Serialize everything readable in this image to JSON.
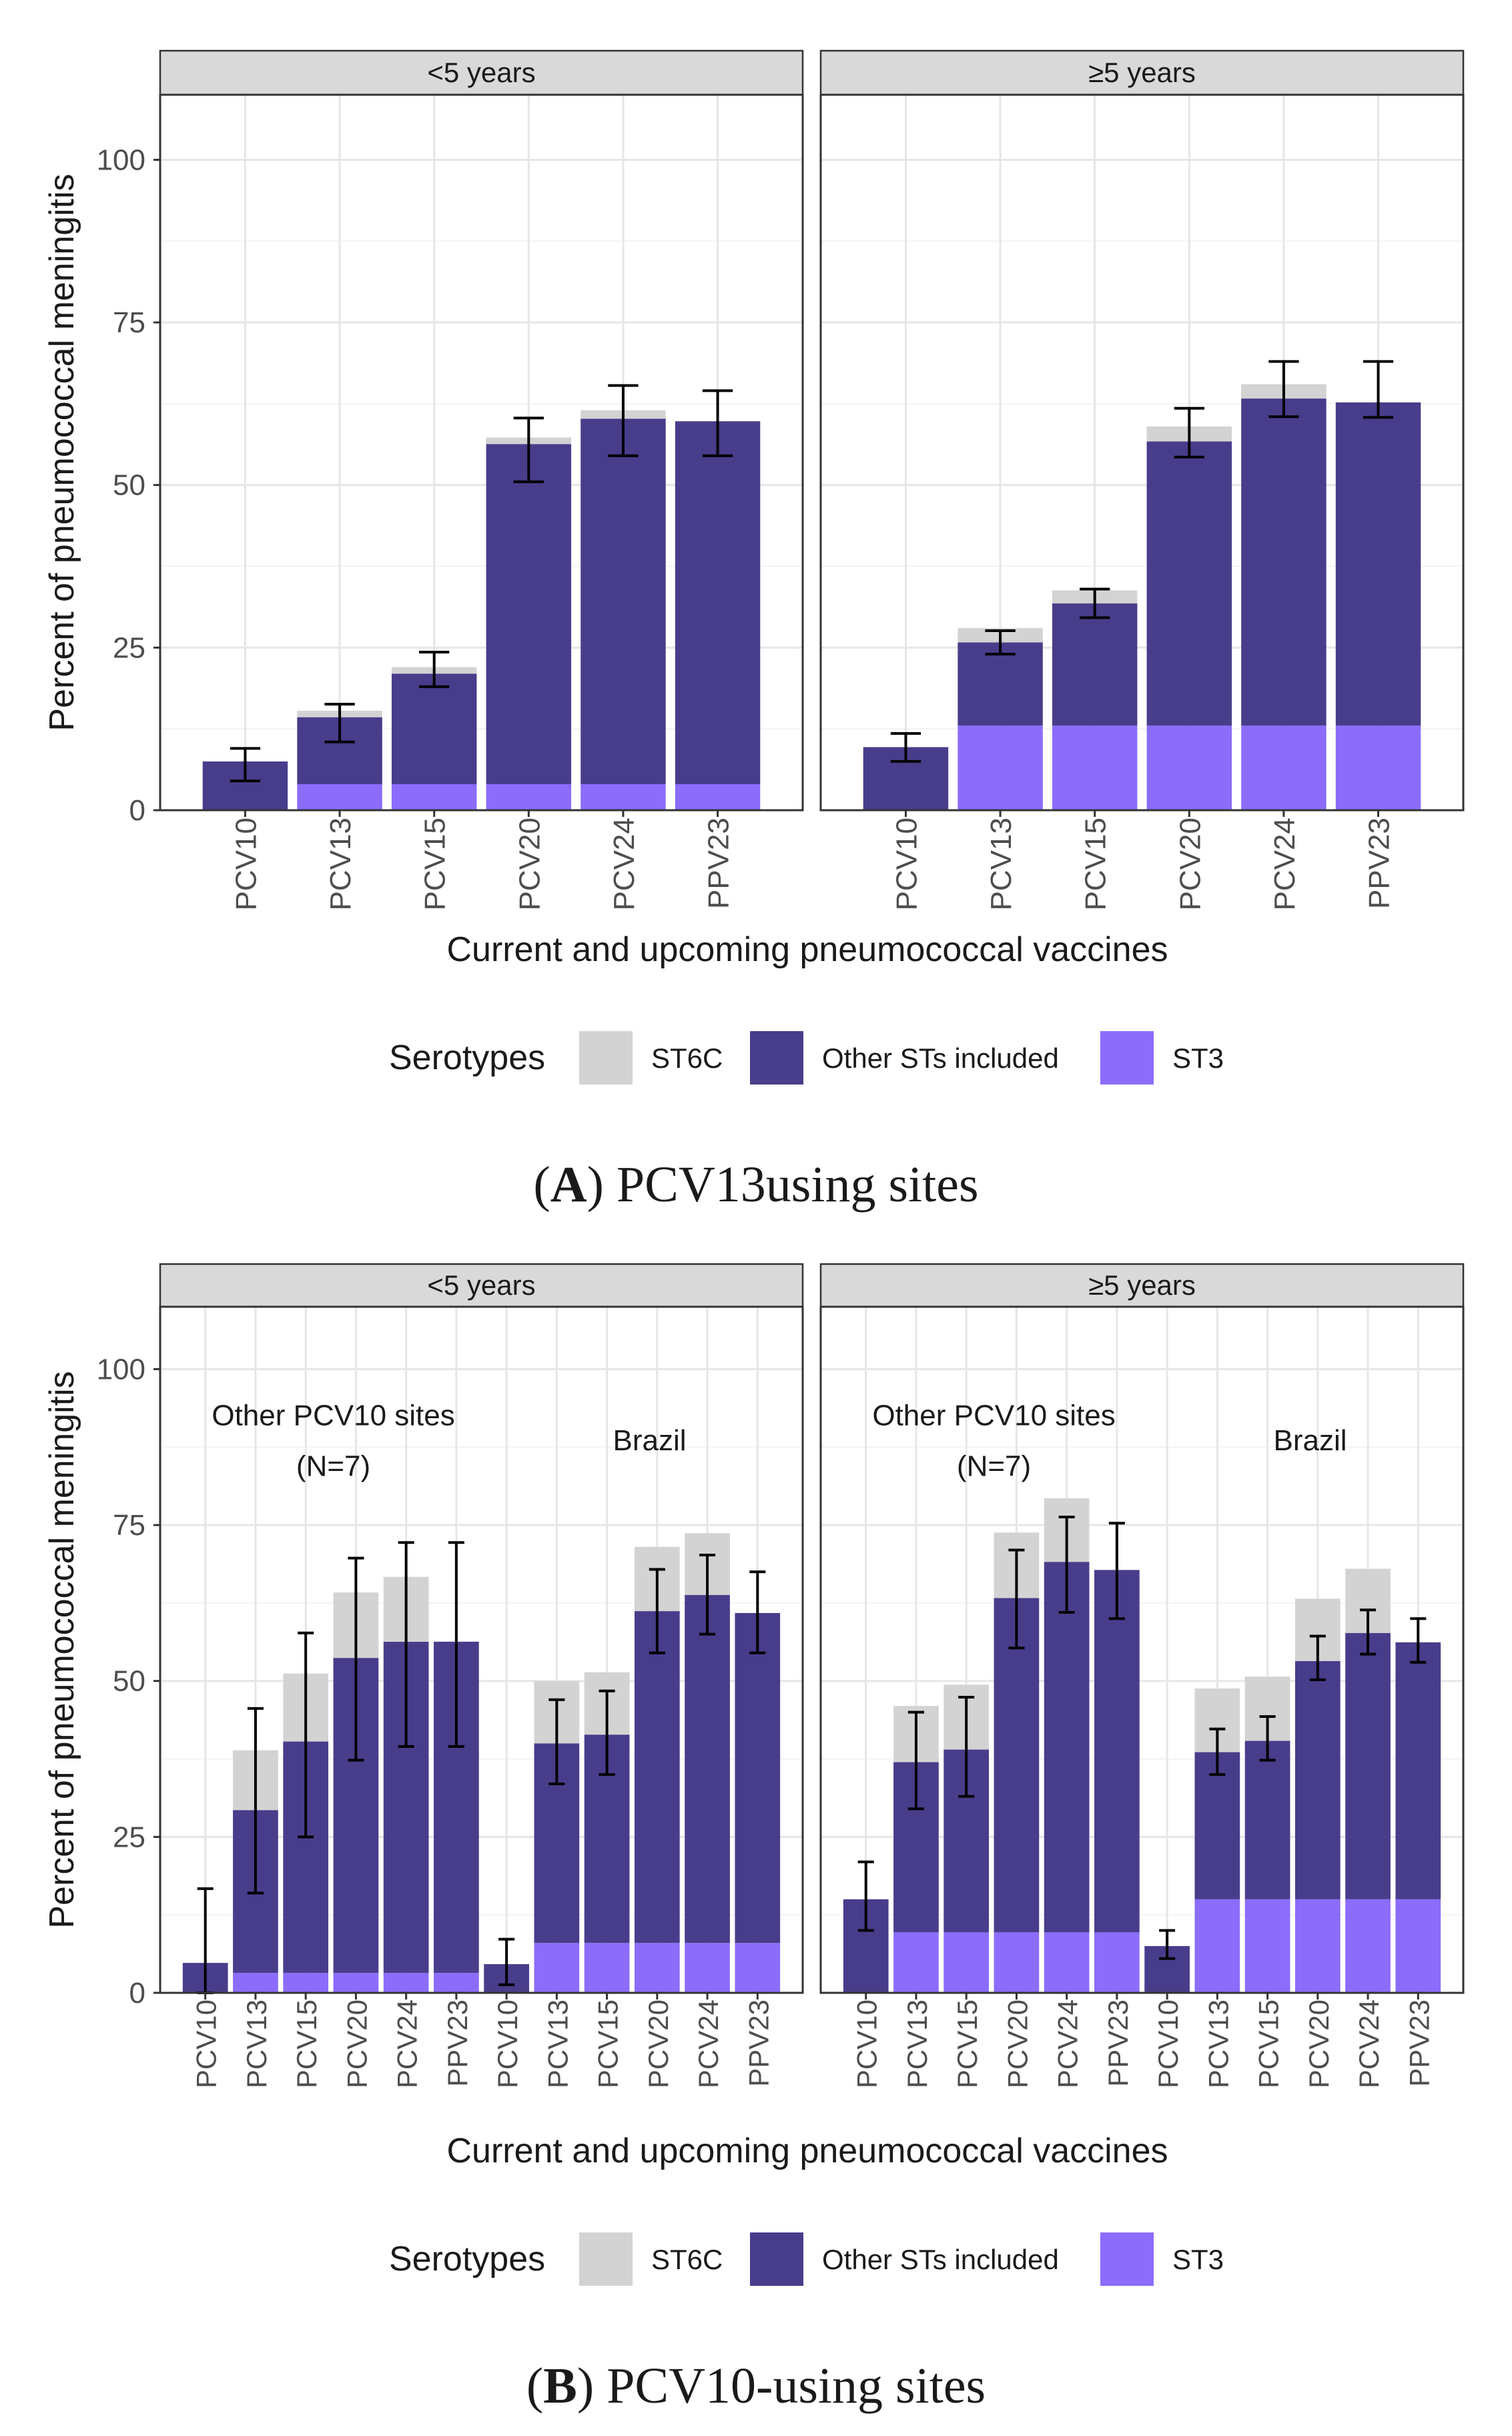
{
  "colors": {
    "ST6C": "#d3d3d3",
    "Other STs included": "#483d8b",
    "ST3": "#8c6cfb",
    "grid_major": "#e6e6e6",
    "grid_minor": "#f3f3f3",
    "strip_fill": "#d9d9d9"
  },
  "chart_data": [
    {
      "type": "bar",
      "stacked": true,
      "panel_group": "A",
      "caption_letter": "A",
      "caption_text": " PCV13using sites",
      "ylabel": "Percent of pneumococcal meningitis",
      "xlabel": "Current and upcoming pneumococcal vaccines",
      "ylim": [
        0,
        110
      ],
      "yticks": [
        0,
        25,
        50,
        75,
        100
      ],
      "legend_title": "Serotypes",
      "legend": [
        "ST6C",
        "Other STs included",
        "ST3"
      ],
      "facets": [
        {
          "title": "<5 years",
          "categories": [
            "PCV10",
            "PCV13",
            "PCV15",
            "PCV20",
            "PCV24",
            "PPV23"
          ],
          "series": [
            {
              "name": "ST3",
              "values": [
                0,
                4,
                4,
                4,
                4,
                4
              ]
            },
            {
              "name": "Other STs included",
              "values": [
                7.5,
                10.3,
                17,
                52.3,
                56.2,
                55.8
              ]
            },
            {
              "name": "ST6C",
              "values": [
                0,
                1,
                1,
                1,
                1.3,
                0
              ]
            }
          ],
          "error_bars": [
            {
              "center": 7,
              "low": 4.5,
              "high": 9.5
            },
            {
              "center": 14,
              "low": 10.5,
              "high": 16.3
            },
            {
              "center": 21,
              "low": 19,
              "high": 24.3
            },
            {
              "center": 56,
              "low": 50.5,
              "high": 60.3
            },
            {
              "center": 60,
              "low": 54.5,
              "high": 65.3
            },
            {
              "center": 60,
              "low": 54.5,
              "high": 64.5
            }
          ]
        },
        {
          "title": "≥5 years",
          "categories": [
            "PCV10",
            "PCV13",
            "PCV15",
            "PCV20",
            "PCV24",
            "PPV23"
          ],
          "series": [
            {
              "name": "ST3",
              "values": [
                0,
                13,
                13,
                13,
                13,
                13
              ]
            },
            {
              "name": "Other STs included",
              "values": [
                9.7,
                12.8,
                18.8,
                43.7,
                50.3,
                49.7
              ]
            },
            {
              "name": "ST6C",
              "values": [
                0,
                2.2,
                2,
                2.3,
                2.2,
                0
              ]
            }
          ],
          "error_bars": [
            {
              "center": 9.7,
              "low": 7.5,
              "high": 11.8
            },
            {
              "center": 25.8,
              "low": 24,
              "high": 27.6
            },
            {
              "center": 31.8,
              "low": 29.6,
              "high": 34
            },
            {
              "center": 57,
              "low": 54.3,
              "high": 61.8
            },
            {
              "center": 63.3,
              "low": 60.5,
              "high": 69
            },
            {
              "center": 62.7,
              "low": 60.4,
              "high": 69
            }
          ]
        }
      ]
    },
    {
      "type": "bar",
      "stacked": true,
      "panel_group": "B",
      "caption_letter": "B",
      "caption_text": " PCV10-using sites",
      "ylabel": "Percent of pneumococcal meningitis",
      "xlabel": "Current and upcoming pneumococcal vaccines",
      "ylim": [
        0,
        110
      ],
      "yticks": [
        0,
        25,
        50,
        75,
        100
      ],
      "legend_title": "Serotypes",
      "legend": [
        "ST6C",
        "Other STs included",
        "ST3"
      ],
      "facets": [
        {
          "title": "<5 years",
          "annotations": [
            {
              "lines": [
                "Other PCV10 sites",
                "(N=7)"
              ],
              "group": "left"
            },
            {
              "lines": [
                "Brazil"
              ],
              "group": "right"
            }
          ],
          "categories": [
            "PCV10",
            "PCV13",
            "PCV15",
            "PCV20",
            "PCV24",
            "PPV23",
            "PCV10",
            "PCV13",
            "PCV15",
            "PCV20",
            "PCV24",
            "PPV23"
          ],
          "series": [
            {
              "name": "ST3",
              "values": [
                0,
                3.2,
                3.2,
                3.2,
                3.2,
                3.2,
                0,
                8,
                8,
                8,
                8,
                8
              ]
            },
            {
              "name": "Other STs included",
              "values": [
                4.8,
                26.1,
                37.1,
                50.5,
                53.1,
                53.1,
                4.6,
                32,
                33.4,
                53.2,
                55.8,
                52.9
              ]
            },
            {
              "name": "ST6C",
              "values": [
                0,
                9.6,
                10.9,
                10.5,
                10.4,
                0,
                0,
                10,
                10,
                10.3,
                9.9,
                0
              ]
            }
          ],
          "error_bars": [
            {
              "center": 4.8,
              "low": 0,
              "high": 16.7
            },
            {
              "center": 29.3,
              "low": 16,
              "high": 45.6
            },
            {
              "center": 40.3,
              "low": 25,
              "high": 57.7
            },
            {
              "center": 53.7,
              "low": 37.3,
              "high": 69.7
            },
            {
              "center": 56.3,
              "low": 39.5,
              "high": 72.2
            },
            {
              "center": 56.3,
              "low": 39.5,
              "high": 72.2
            },
            {
              "center": 4.6,
              "low": 1.3,
              "high": 8.6
            },
            {
              "center": 40,
              "low": 33.5,
              "high": 47
            },
            {
              "center": 41.4,
              "low": 35,
              "high": 48.4
            },
            {
              "center": 61.2,
              "low": 54.5,
              "high": 67.9
            },
            {
              "center": 63.8,
              "low": 57.5,
              "high": 70.2
            },
            {
              "center": 60.9,
              "low": 54.5,
              "high": 67.5
            }
          ]
        },
        {
          "title": "≥5 years",
          "annotations": [
            {
              "lines": [
                "Other PCV10 sites",
                "(N=7)"
              ],
              "group": "left"
            },
            {
              "lines": [
                "Brazil"
              ],
              "group": "right"
            }
          ],
          "categories": [
            "PCV10",
            "PCV13",
            "PCV15",
            "PCV20",
            "PCV24",
            "PPV23",
            "PCV10",
            "PCV13",
            "PCV15",
            "PCV20",
            "PCV24",
            "PPV23"
          ],
          "series": [
            {
              "name": "ST3",
              "values": [
                0,
                9.7,
                9.7,
                9.7,
                9.7,
                9.7,
                0,
                15,
                15,
                15,
                15,
                15
              ]
            },
            {
              "name": "Other STs included",
              "values": [
                15,
                27.3,
                29.3,
                53.6,
                59.4,
                58.1,
                7.5,
                23.6,
                25.4,
                38.2,
                42.7,
                41.2
              ]
            },
            {
              "name": "ST6C",
              "values": [
                0,
                9,
                10.4,
                10.5,
                10.2,
                0,
                0,
                10.2,
                10.3,
                10,
                10.3,
                0
              ]
            }
          ],
          "error_bars": [
            {
              "center": 15,
              "low": 10,
              "high": 21
            },
            {
              "center": 37,
              "low": 29.5,
              "high": 45
            },
            {
              "center": 39,
              "low": 31.5,
              "high": 47.4
            },
            {
              "center": 63.3,
              "low": 55.3,
              "high": 71
            },
            {
              "center": 69.1,
              "low": 61,
              "high": 76.3
            },
            {
              "center": 67.8,
              "low": 60,
              "high": 75.3
            },
            {
              "center": 7.5,
              "low": 5.5,
              "high": 10
            },
            {
              "center": 38.6,
              "low": 35,
              "high": 42.3
            },
            {
              "center": 40.4,
              "low": 37.3,
              "high": 44.3
            },
            {
              "center": 53.2,
              "low": 50.2,
              "high": 57.2
            },
            {
              "center": 57.7,
              "low": 54.3,
              "high": 61.4
            },
            {
              "center": 56.2,
              "low": 53,
              "high": 60
            }
          ]
        }
      ]
    }
  ]
}
